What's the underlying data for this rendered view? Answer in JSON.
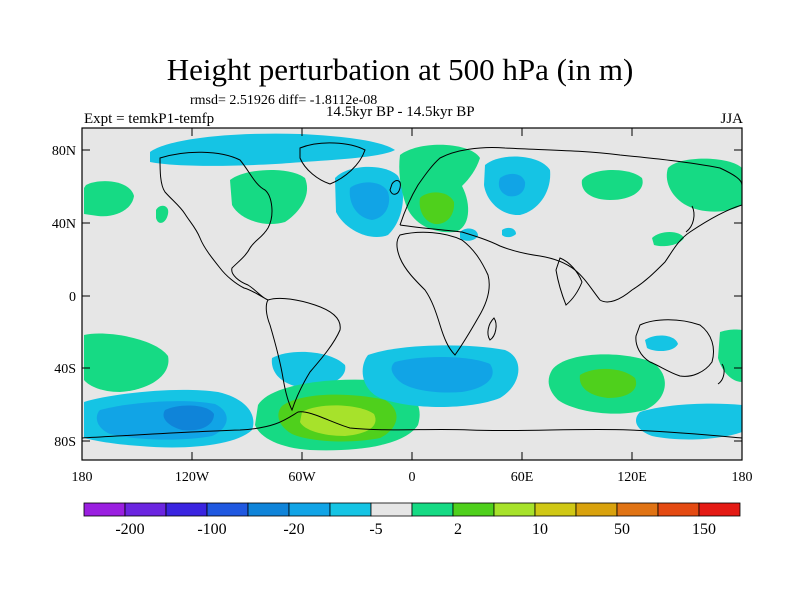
{
  "title": "Height perturbation at 500 hPa (in m)",
  "stats": "rmsd= 2.51926 diff= -1.8112e-08",
  "expt": "Expt = temkP1-temfp",
  "period": "14.5kyr BP - 14.5kyr BP",
  "season": "JJA",
  "map_data": {
    "projection": "cylindrical-equidistant",
    "lon_range": [
      -180,
      180
    ],
    "lat_range": [
      -90,
      90
    ],
    "lat_labels": [
      "80N",
      "40N",
      "0",
      "40S",
      "80S"
    ],
    "lon_labels": [
      "180",
      "120W",
      "60W",
      "0",
      "60E",
      "120E",
      "180"
    ],
    "background_color": "#e6e6e6",
    "anomalies": [
      {
        "name": "north-pacific-low",
        "sign": "negative",
        "level_color": "#15b3e0"
      },
      {
        "name": "north-atlantic-low",
        "sign": "negative",
        "level_color": "#15b3e0"
      },
      {
        "name": "western-russia-low",
        "sign": "negative",
        "level_color": "#15b3e0"
      },
      {
        "name": "europe-high",
        "sign": "positive",
        "level_color": "#4fd01c"
      },
      {
        "name": "canada-arctic-high",
        "sign": "positive",
        "level_color": "#16da84"
      },
      {
        "name": "south-pacific-low",
        "sign": "negative",
        "level_color": "#0f84d9"
      },
      {
        "name": "south-atlantic-low",
        "sign": "negative",
        "level_color": "#15b3e0"
      },
      {
        "name": "weddell-high",
        "sign": "positive",
        "level_color": "#a7e22b"
      },
      {
        "name": "southern-indian-high",
        "sign": "positive",
        "level_color": "#4fd01c"
      }
    ]
  },
  "colorbar": {
    "colors": [
      "#9a1fe0",
      "#6b25e0",
      "#3a24e0",
      "#2058e0",
      "#0f84d9",
      "#11a4e6",
      "#15c4e4",
      "#e6e6e6",
      "#16da84",
      "#4fd01c",
      "#a7e22b",
      "#d0c815",
      "#d9a20d",
      "#e07314",
      "#e44a12",
      "#e41a14"
    ],
    "labels": [
      "-200",
      "-100",
      "-20",
      "-5",
      "2",
      "10",
      "50",
      "150"
    ]
  }
}
